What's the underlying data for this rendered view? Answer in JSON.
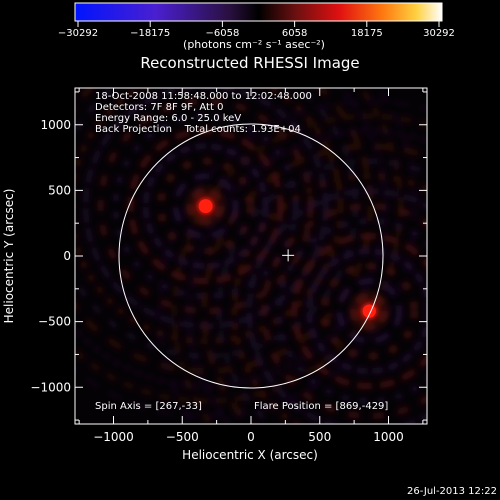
{
  "colorbar": {
    "ticks": [
      "−30292",
      "−18175",
      "−6058",
      "6058",
      "18175",
      "30292"
    ],
    "unit_label": "(photons cm⁻² s⁻¹ asec⁻²)"
  },
  "image": {
    "title": "Reconstructed RHESSI Image",
    "xlabel": "Heliocentric X (arcsec)",
    "ylabel": "Heliocentric Y (arcsec)",
    "xlim": [
      -1280,
      1280
    ],
    "ylim": [
      -1280,
      1280
    ],
    "xticks": [
      -1000,
      -500,
      0,
      500,
      1000
    ],
    "yticks": [
      -1000,
      -500,
      0,
      500,
      1000
    ],
    "xtick_labels": [
      "−1000",
      "−500",
      "0",
      "500",
      "1000"
    ],
    "ytick_labels": [
      "−1000",
      "−500",
      "0",
      "500",
      "1000"
    ],
    "solar_limb_radius_arcsec": 960,
    "sun_center_marker": [
      270,
      5
    ],
    "sources": [
      {
        "x": -330,
        "y": 380,
        "intensity": 1.0
      },
      {
        "x": 860,
        "y": -420,
        "intensity": 0.95
      }
    ],
    "info_lines": [
      "18-Oct-2008 11:58:48.000 to 12:02:48.000",
      "Detectors: 7F 8F 9F, Att 0",
      "Energy Range: 6.0 - 25.0 keV",
      "Back Projection    Total counts: 1.93E+04"
    ],
    "spin_axis": "Spin Axis = [267,-33]",
    "flare_position": "Flare Position = [869,-429]"
  },
  "timestamp": "26-Jul-2013 12:22",
  "colors": {
    "background": "#000000",
    "foreground": "#ffffff",
    "source_core": "#ff2010",
    "noise_positive": "#6a1a10",
    "noise_negative": "#2a1040"
  }
}
